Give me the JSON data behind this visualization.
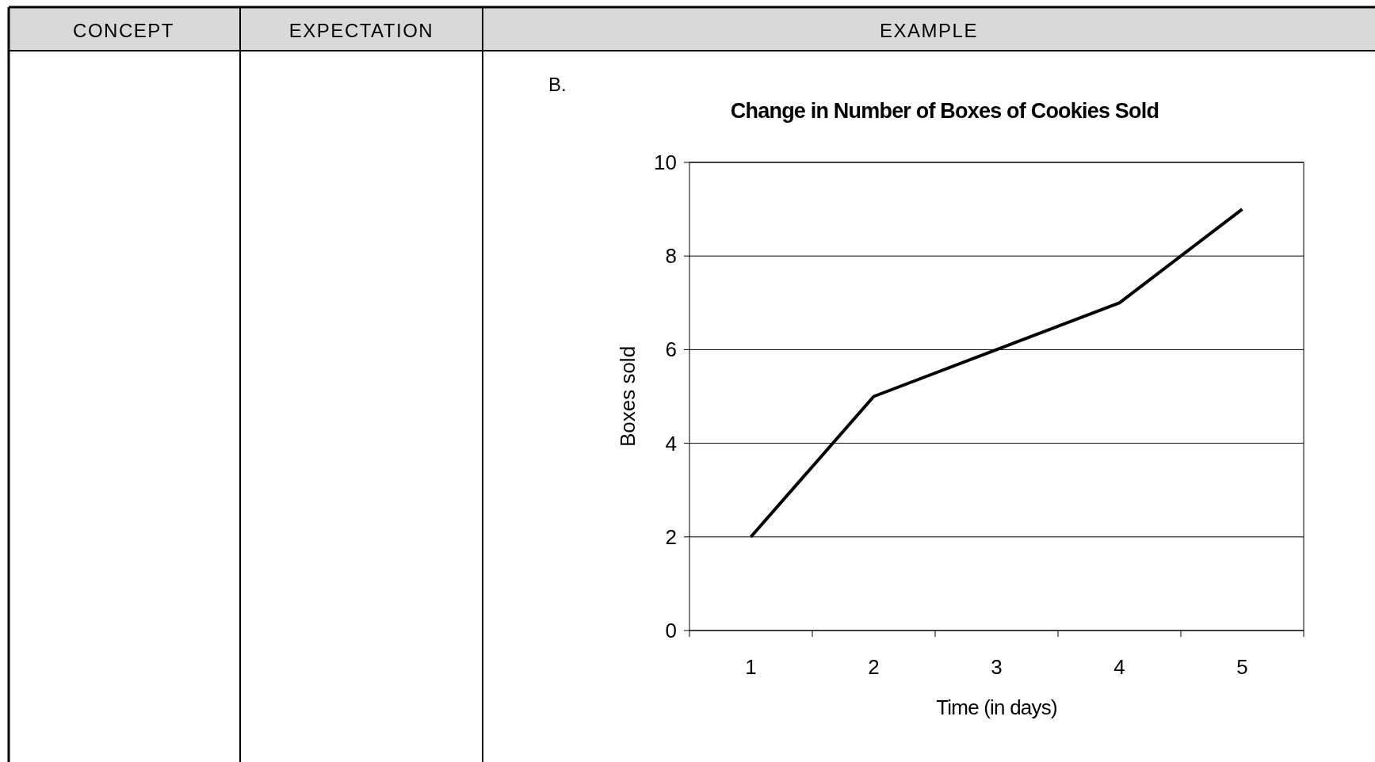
{
  "chart_data": {
    "type": "line",
    "title": "Change in Number of Boxes of Cookies Sold",
    "xlabel": "Time (in days)",
    "ylabel": "Boxes sold",
    "categories": [
      "1",
      "2",
      "3",
      "4",
      "5"
    ],
    "series": [
      {
        "color": "#000000",
        "values": [
          2,
          5,
          6,
          7,
          9
        ]
      }
    ],
    "ylim": [
      0,
      10
    ],
    "yticks": [
      0,
      2,
      4,
      6,
      8,
      10
    ],
    "grid": "y",
    "marker": "none",
    "line_style": "solid",
    "annotations": [
      "CONCEPT",
      "EXPECTATION",
      "EXAMPLE",
      "B."
    ]
  }
}
